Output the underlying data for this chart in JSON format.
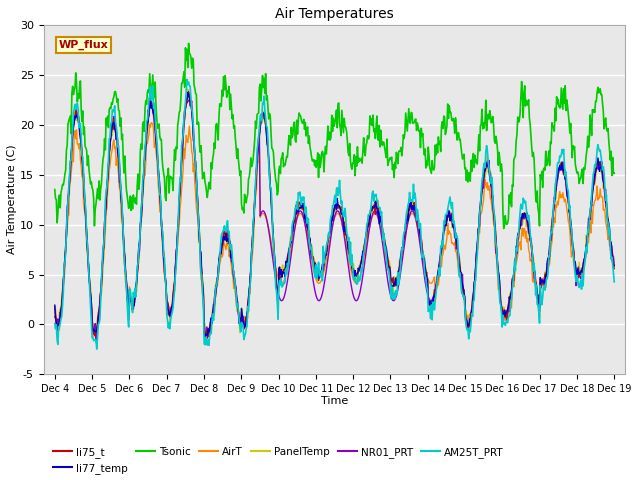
{
  "title": "Air Temperatures",
  "xlabel": "Time",
  "ylabel": "Air Temperature (C)",
  "ylim": [
    -5,
    30
  ],
  "xlim_days": [
    3.7,
    19.3
  ],
  "x_ticks": [
    4,
    5,
    6,
    7,
    8,
    9,
    10,
    11,
    12,
    13,
    14,
    15,
    16,
    17,
    18,
    19
  ],
  "x_tick_labels": [
    "Dec 4",
    "Dec 5",
    "Dec 6",
    "Dec 7",
    "Dec 8",
    "Dec 9",
    "Dec 10",
    "Dec 11",
    "Dec 12",
    "Dec 13",
    "Dec 14",
    "Dec 15",
    "Dec 16",
    "Dec 17",
    "Dec 18",
    "Dec 19"
  ],
  "y_ticks": [
    -5,
    0,
    5,
    10,
    15,
    20,
    25,
    30
  ],
  "plot_bg_color": "#e8e8e8",
  "grid_color": "white",
  "series": {
    "li75_t": {
      "color": "#cc0000",
      "lw": 1.0,
      "zorder": 3
    },
    "li77_temp": {
      "color": "#0000cc",
      "lw": 1.0,
      "zorder": 3
    },
    "Tsonic": {
      "color": "#00cc00",
      "lw": 1.2,
      "zorder": 2
    },
    "AirT": {
      "color": "#ff8800",
      "lw": 1.0,
      "zorder": 3
    },
    "PanelTemp": {
      "color": "#cccc00",
      "lw": 1.0,
      "zorder": 3
    },
    "NR01_PRT": {
      "color": "#8800cc",
      "lw": 1.0,
      "zorder": 3
    },
    "AM25T_PRT": {
      "color": "#00cccc",
      "lw": 1.2,
      "zorder": 4
    }
  },
  "wp_flux_box": {
    "text": "WP_flux",
    "text_color": "#aa0000",
    "bg_color": "#ffffcc",
    "edge_color": "#cc8800",
    "fontsize": 8,
    "fontweight": "bold"
  }
}
